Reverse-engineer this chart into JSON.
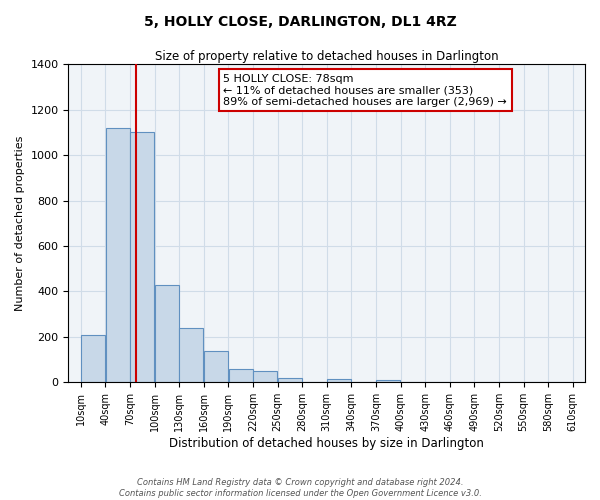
{
  "title": "5, HOLLY CLOSE, DARLINGTON, DL1 4RZ",
  "subtitle": "Size of property relative to detached houses in Darlington",
  "xlabel": "Distribution of detached houses by size in Darlington",
  "ylabel": "Number of detached properties",
  "bar_color": "#c8d8e8",
  "bar_edge_color": "#6090c0",
  "grid_color": "#d0dce8",
  "background_color": "#f0f4f8",
  "bin_edges": [
    10,
    40,
    70,
    100,
    130,
    160,
    190,
    220,
    250,
    280,
    310,
    340,
    370,
    400,
    430,
    460,
    490,
    520,
    550,
    580,
    610
  ],
  "bar_heights": [
    210,
    1120,
    1100,
    430,
    240,
    140,
    60,
    48,
    20,
    0,
    15,
    0,
    10,
    0,
    0,
    0,
    0,
    0,
    0,
    0
  ],
  "property_size": 78,
  "vline_color": "#cc0000",
  "annotation_text": "5 HOLLY CLOSE: 78sqm\n← 11% of detached houses are smaller (353)\n89% of semi-detached houses are larger (2,969) →",
  "annotation_box_edge": "#cc0000",
  "ylim": [
    0,
    1400
  ],
  "yticks": [
    0,
    200,
    400,
    600,
    800,
    1000,
    1200,
    1400
  ],
  "footer_line1": "Contains HM Land Registry data © Crown copyright and database right 2024.",
  "footer_line2": "Contains public sector information licensed under the Open Government Licence v3.0."
}
